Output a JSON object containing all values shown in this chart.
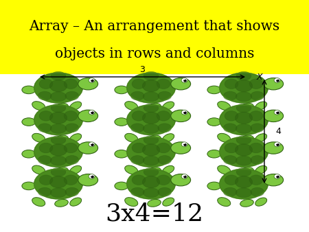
{
  "title_line1": "Array – An arrangement that shows",
  "title_line2": "objects in rows and columns",
  "title_bg_color": "#FFFF00",
  "title_fontsize": 14.5,
  "rows": 4,
  "cols": 3,
  "equation": "3x4=12",
  "equation_fontsize": 26,
  "arrow_label_h": "3",
  "arrow_label_v": "4",
  "arrow_label_x": "X",
  "bg_color": "#FFFFFF",
  "turtle_shell_color": "#4A8B1E",
  "turtle_shell_dark": "#2E6010",
  "turtle_body_color": "#7DC840",
  "turtle_shell_light": "#6AB52E"
}
